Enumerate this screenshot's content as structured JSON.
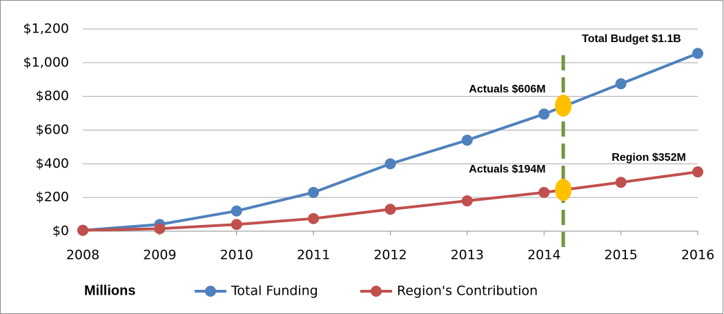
{
  "chart_data": {
    "type": "line",
    "x": [
      2008,
      2009,
      2010,
      2011,
      2012,
      2013,
      2014,
      2015,
      2016
    ],
    "xlim": [
      2008,
      2016
    ],
    "xticks": [
      2008,
      2009,
      2010,
      2011,
      2012,
      2013,
      2014,
      2015,
      2016
    ],
    "ylim": [
      0,
      1200
    ],
    "yticks": [
      {
        "value": 0,
        "label": "$0"
      },
      {
        "value": 200,
        "label": "$200"
      },
      {
        "value": 400,
        "label": "$400"
      },
      {
        "value": 600,
        "label": "$600"
      },
      {
        "value": 800,
        "label": "$800"
      },
      {
        "value": 1000,
        "label": "$1,000"
      },
      {
        "value": 1200,
        "label": "$1,200"
      }
    ],
    "grid": true,
    "axis_label": "Millions",
    "series": [
      {
        "name": "Total Funding",
        "color": "#4f81bd",
        "values": [
          5,
          40,
          120,
          230,
          400,
          540,
          695,
          875,
          1055
        ]
      },
      {
        "name": "Region's Contribution",
        "color": "#c0504d",
        "values": [
          5,
          15,
          40,
          75,
          130,
          180,
          230,
          290,
          352
        ]
      }
    ],
    "vline": 2014.25,
    "vline_color": "#77933c",
    "markers": [
      {
        "x": 2014.25,
        "y": 745
      },
      {
        "x": 2014.25,
        "y": 245
      }
    ],
    "marker_color": "#ffc000",
    "annotations": [
      "Total Budget $1.1B",
      "Actuals $606M",
      "Actuals $194M",
      "Region $352M"
    ]
  }
}
